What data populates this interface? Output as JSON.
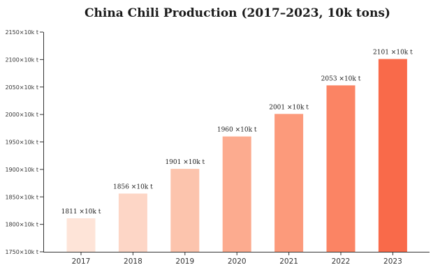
{
  "chart_data": {
    "type": "bar",
    "title": "China Chili Production (2017–2023, 10k tons)",
    "xlabel": "",
    "ylabel": "",
    "categories": [
      "2017",
      "2018",
      "2019",
      "2020",
      "2021",
      "2022",
      "2023"
    ],
    "values": [
      1811,
      1856,
      1901,
      1960,
      2001,
      2053,
      2101
    ],
    "data_labels": [
      "1811 ×10k t",
      "1856 ×10k t",
      "1901 ×10k t",
      "1960 ×10k t",
      "2001 ×10k t",
      "2053 ×10k t",
      "2101 ×10k t"
    ],
    "ylim": [
      1750,
      2150
    ],
    "yticks": [
      1750,
      1800,
      1850,
      1900,
      1950,
      2000,
      2050,
      2100,
      2150
    ],
    "ytick_labels": [
      "1750×10k t",
      "1800×10k t",
      "1850×10k t",
      "1900×10k t",
      "1950×10k t",
      "2000×10k t",
      "2050×10k t",
      "2100×10k t",
      "2150×10k t"
    ],
    "bar_colors": [
      "#fee4d8",
      "#fdd6c6",
      "#fcc4ad",
      "#fcab8f",
      "#fc9a7b",
      "#fb8464",
      "#f96a4a"
    ],
    "grid": false,
    "legend": "none"
  }
}
